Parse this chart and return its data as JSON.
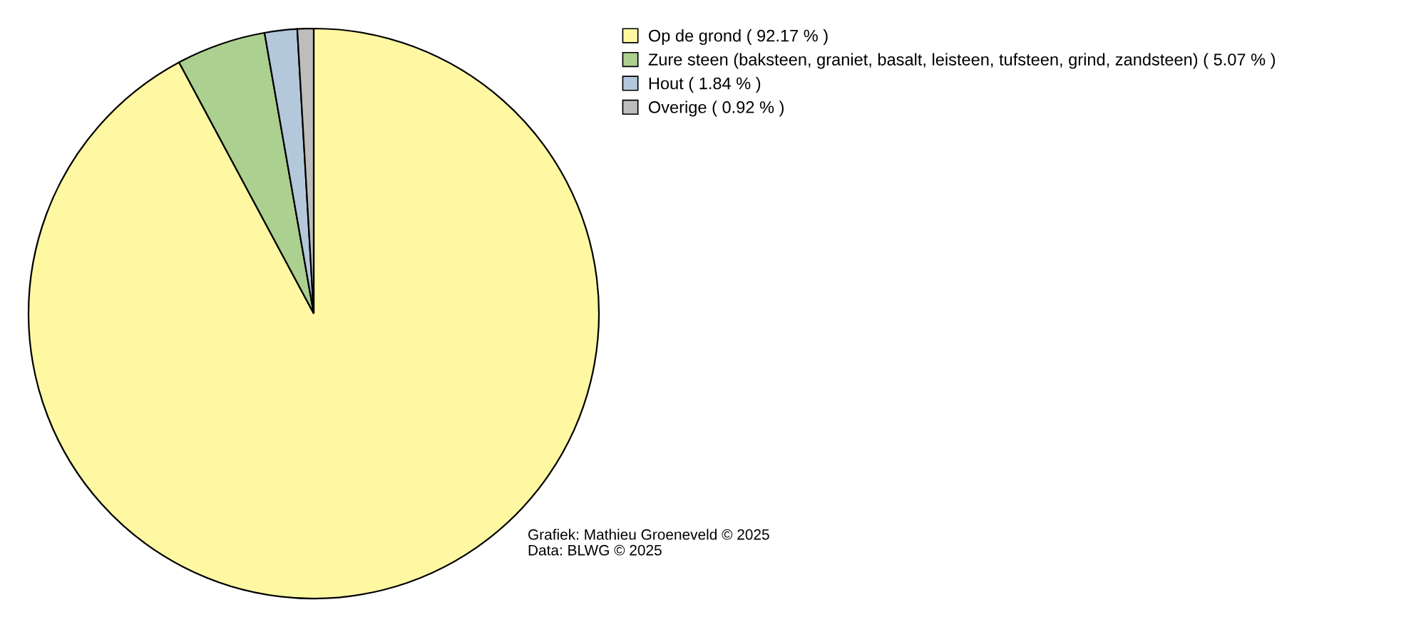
{
  "chart_data": {
    "type": "pie",
    "categories": [
      "Op de grond ( 92.17 % )",
      "Zure steen (baksteen, graniet, basalt, leisteen, tufsteen, grind, zandsteen) ( 5.07 % )",
      "Hout ( 1.84 % )",
      "Overige ( 0.92 % )"
    ],
    "values": [
      92.17,
      5.07,
      1.84,
      0.92
    ],
    "colors": [
      "#fff8a3",
      "#acd08f",
      "#b3c8db",
      "#bdbdbd"
    ],
    "legend": "top right",
    "annotations": [
      "Grafiek: Mathieu Groeneveld © 2025",
      "Data: BLWG © 2025"
    ]
  }
}
